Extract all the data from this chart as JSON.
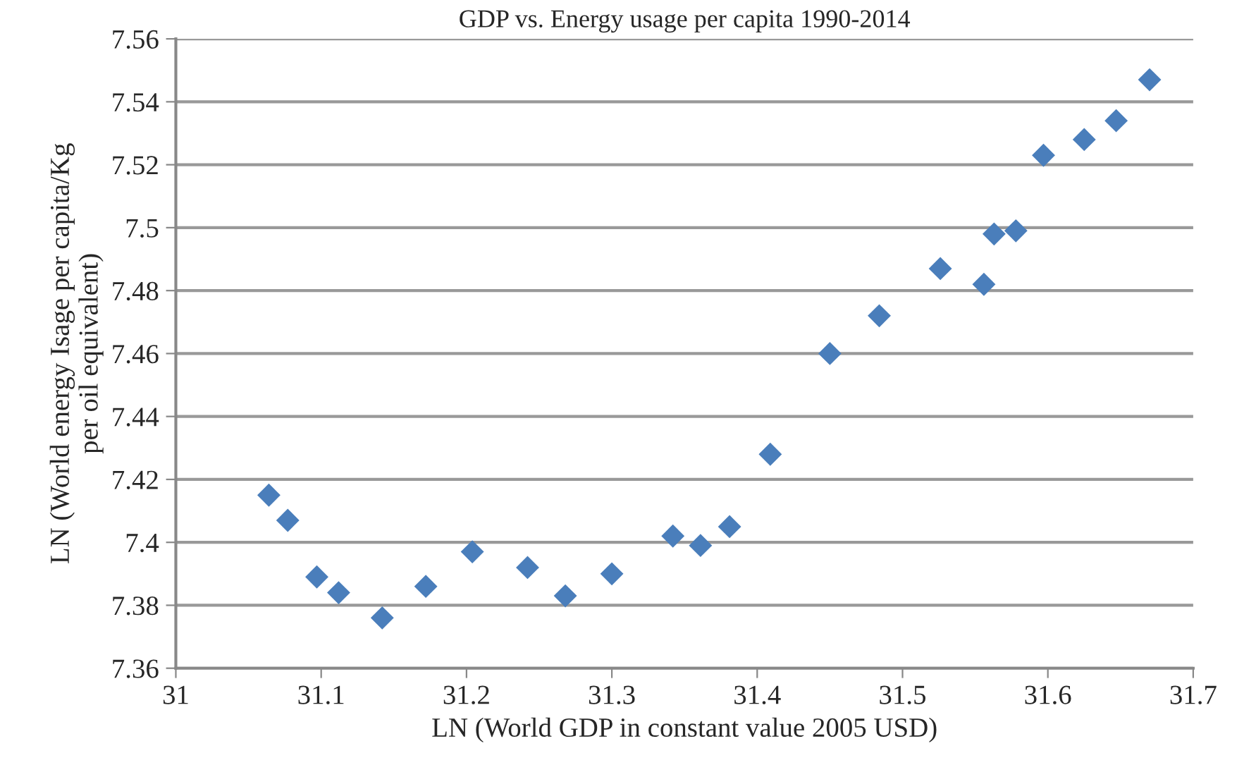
{
  "chart_data": {
    "type": "scatter",
    "title": "GDP vs. Energy usage per capita 1990-2014",
    "xlabel": "LN (World GDP in constant value 2005 USD)",
    "ylabel": "LN (World energy Isage per capita/Kg per oil equivalent)",
    "series": [
      {
        "color": "#4a7ebb",
        "x": [
          31.064,
          31.077,
          31.097,
          31.112,
          31.142,
          31.172,
          31.204,
          31.242,
          31.268,
          31.3,
          31.342,
          31.361,
          31.381,
          31.409,
          31.45,
          31.484,
          31.526,
          31.556,
          31.563,
          31.578,
          31.597,
          31.625,
          31.647,
          31.67
        ],
        "values": [
          7.415,
          7.407,
          7.389,
          7.384,
          7.376,
          7.386,
          7.397,
          7.392,
          7.383,
          7.39,
          7.402,
          7.399,
          7.405,
          7.428,
          7.46,
          7.472,
          7.487,
          7.482,
          7.498,
          7.499,
          7.523,
          7.528,
          7.534,
          7.547
        ]
      }
    ],
    "xlim": [
      31,
      31.7
    ],
    "xticks": [
      31,
      31.1,
      31.2,
      31.3,
      31.4,
      31.5,
      31.6,
      31.7
    ],
    "ylim": [
      7.36,
      7.56
    ],
    "yticks": [
      7.36,
      7.38,
      7.4,
      7.42,
      7.44,
      7.46,
      7.48,
      7.5,
      7.52,
      7.54,
      7.56
    ],
    "grid": "y",
    "marker": "diamond"
  }
}
